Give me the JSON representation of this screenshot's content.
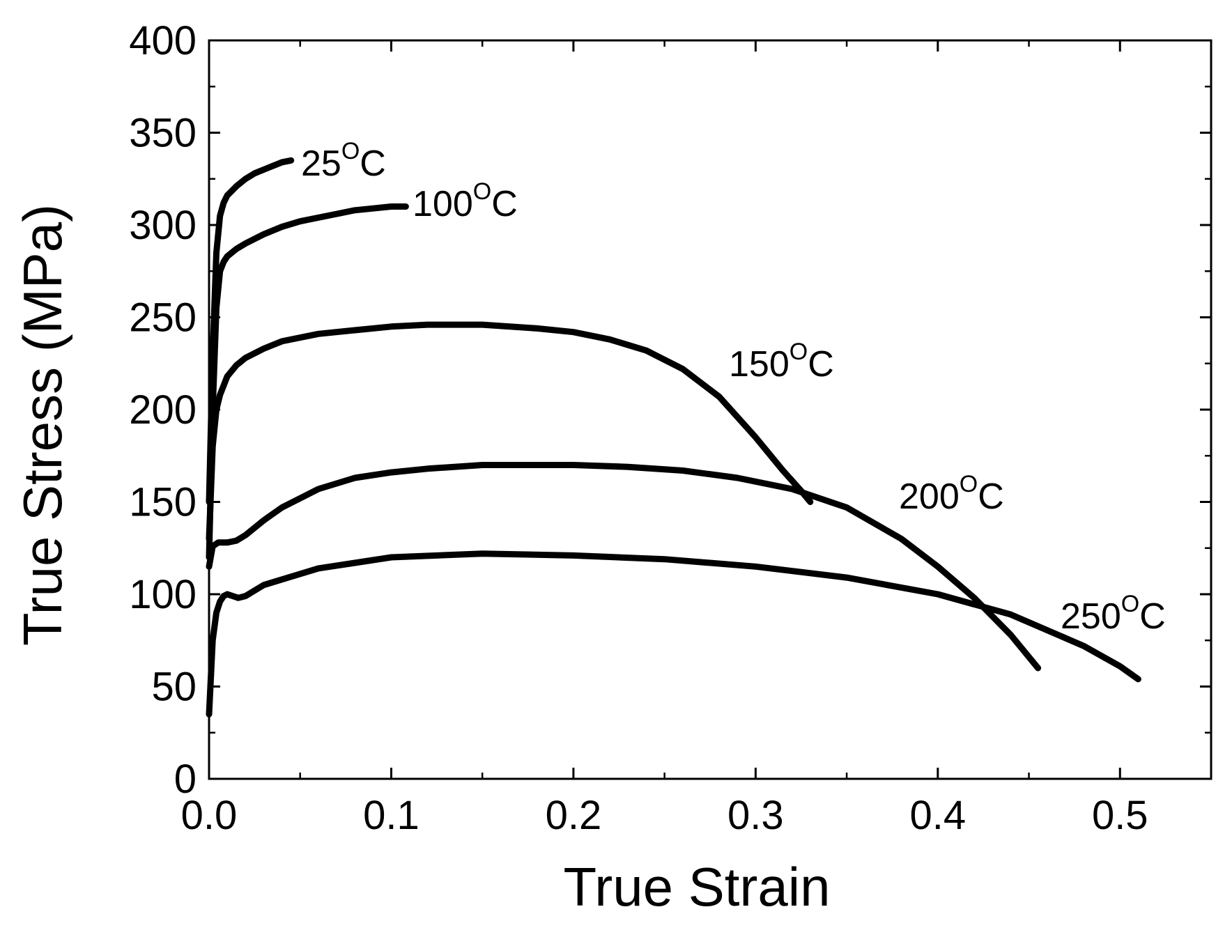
{
  "chart_data": {
    "type": "line",
    "title": "",
    "xlabel": "True Strain",
    "ylabel": "True Stress (MPa)",
    "xlim": [
      0.0,
      0.55
    ],
    "ylim": [
      0,
      400
    ],
    "x_ticks": [
      0.0,
      0.1,
      0.2,
      0.3,
      0.4,
      0.5
    ],
    "x_tick_labels": [
      "0.0",
      "0.1",
      "0.2",
      "0.3",
      "0.4",
      "0.5"
    ],
    "y_ticks": [
      0,
      50,
      100,
      150,
      200,
      250,
      300,
      350,
      400
    ],
    "y_tick_labels": [
      "0",
      "50",
      "100",
      "150",
      "200",
      "250",
      "300",
      "350",
      "400"
    ],
    "grid": false,
    "legend": "inline labels at curve ends",
    "line_color": "#000000",
    "series": [
      {
        "name": "25°C",
        "label_main": "25",
        "label_sup": "O",
        "label_unit": "C",
        "x": [
          0.0,
          0.002,
          0.004,
          0.006,
          0.008,
          0.01,
          0.015,
          0.02,
          0.025,
          0.03,
          0.035,
          0.04,
          0.045
        ],
        "y": [
          150,
          230,
          285,
          305,
          312,
          316,
          321,
          325,
          328,
          330,
          332,
          334,
          335
        ]
      },
      {
        "name": "100°C",
        "label_main": "100",
        "label_sup": "O",
        "label_unit": "C",
        "x": [
          0.0,
          0.002,
          0.004,
          0.006,
          0.008,
          0.01,
          0.015,
          0.02,
          0.03,
          0.04,
          0.05,
          0.06,
          0.07,
          0.08,
          0.09,
          0.1,
          0.108
        ],
        "y": [
          120,
          200,
          255,
          275,
          280,
          283,
          287,
          290,
          295,
          299,
          302,
          304,
          306,
          308,
          309,
          310,
          310
        ]
      },
      {
        "name": "150°C",
        "label_main": "150",
        "label_sup": "O",
        "label_unit": "C",
        "x": [
          0.0,
          0.002,
          0.004,
          0.006,
          0.008,
          0.01,
          0.015,
          0.02,
          0.03,
          0.04,
          0.06,
          0.08,
          0.1,
          0.12,
          0.15,
          0.18,
          0.2,
          0.22,
          0.24,
          0.26,
          0.28,
          0.3,
          0.315,
          0.325,
          0.33
        ],
        "y": [
          130,
          180,
          200,
          208,
          213,
          218,
          224,
          228,
          233,
          237,
          241,
          243,
          245,
          246,
          246,
          244,
          242,
          238,
          232,
          222,
          207,
          185,
          167,
          156,
          150
        ]
      },
      {
        "name": "200°C",
        "label_main": "200",
        "label_sup": "O",
        "label_unit": "C",
        "x": [
          0.0,
          0.002,
          0.005,
          0.01,
          0.015,
          0.02,
          0.03,
          0.04,
          0.06,
          0.08,
          0.1,
          0.12,
          0.15,
          0.18,
          0.2,
          0.23,
          0.26,
          0.29,
          0.32,
          0.35,
          0.38,
          0.4,
          0.42,
          0.44,
          0.455
        ],
        "y": [
          115,
          126,
          128,
          128,
          129,
          132,
          140,
          147,
          157,
          163,
          166,
          168,
          170,
          170,
          170,
          169,
          167,
          163,
          157,
          147,
          130,
          115,
          98,
          78,
          60
        ]
      },
      {
        "name": "250°C",
        "label_main": "250",
        "label_sup": "O",
        "label_unit": "C",
        "x": [
          0.0,
          0.002,
          0.004,
          0.006,
          0.008,
          0.01,
          0.013,
          0.016,
          0.02,
          0.025,
          0.03,
          0.04,
          0.06,
          0.08,
          0.1,
          0.15,
          0.2,
          0.25,
          0.3,
          0.35,
          0.4,
          0.44,
          0.48,
          0.5,
          0.51
        ],
        "y": [
          35,
          75,
          90,
          96,
          99,
          100,
          99,
          98,
          99,
          102,
          105,
          108,
          114,
          117,
          120,
          122,
          121,
          119,
          115,
          109,
          100,
          89,
          72,
          61,
          54
        ]
      }
    ]
  }
}
